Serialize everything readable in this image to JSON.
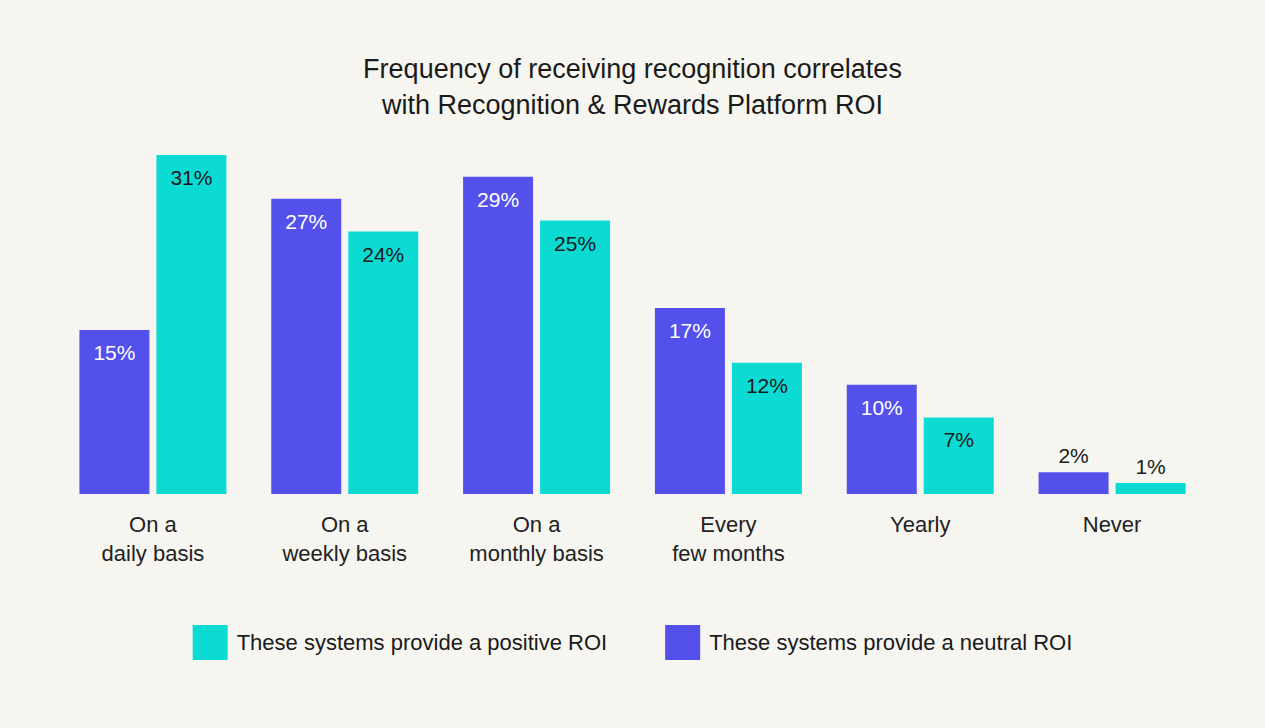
{
  "chart_data": {
    "type": "bar",
    "title": "Frequency of receiving recognition correlates\nwith Recognition & Rewards Platform ROI",
    "categories": [
      "On a\ndaily basis",
      "On a\nweekly basis",
      "On a\nmonthly basis",
      "Every\nfew months",
      "Yearly",
      "Never"
    ],
    "series": [
      {
        "name": "These systems provide a neutral ROI",
        "color": "#5350eb",
        "values": [
          15,
          27,
          29,
          17,
          10,
          2
        ],
        "value_labels": [
          "15%",
          "27%",
          "29%",
          "17%",
          "10%",
          "2%"
        ]
      },
      {
        "name": "These systems provide a positive ROI",
        "color": "#0cdbd4",
        "values": [
          31,
          24,
          25,
          12,
          7,
          1
        ],
        "value_labels": [
          "31%",
          "24%",
          "25%",
          "12%",
          "7%",
          "1%"
        ]
      }
    ],
    "ylim": [
      0,
      31
    ],
    "grid": false,
    "data_labels": true,
    "tick_labels": "x",
    "legend": "bottom"
  }
}
